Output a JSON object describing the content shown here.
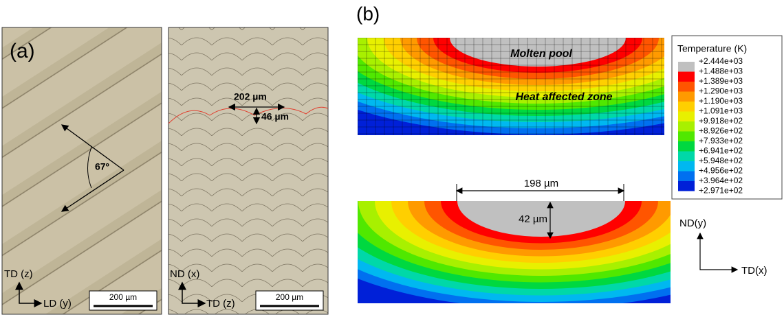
{
  "panel_a": {
    "label": "(a)",
    "left_image": {
      "angle": "67º",
      "axis_vertical": "TD (z)",
      "axis_horizontal": "LD (y)",
      "scale_bar": "200 µm"
    },
    "right_image": {
      "width_label": "202 µm",
      "depth_label": "46 µm",
      "axis_vertical": "ND (x)",
      "axis_horizontal": "TD (z)",
      "scale_bar": "200 µm"
    }
  },
  "panel_b": {
    "label": "(b)",
    "top_model": {
      "pool_label": "Molten pool",
      "haz_label": "Heat affected zone"
    },
    "legend": {
      "title": "Temperature (K)",
      "levels": [
        "+2.444e+03",
        "+1.488e+03",
        "+1.389e+03",
        "+1.290e+03",
        "+1.190e+03",
        "+1.091e+03",
        "+9.918e+02",
        "+8.926e+02",
        "+7.933e+02",
        "+6.941e+02",
        "+5.948e+02",
        "+4.956e+02",
        "+3.964e+02",
        "+2.971e+02"
      ],
      "colors": [
        "#c0c0c0",
        "#ff0000",
        "#ff5500",
        "#ff9a00",
        "#ffcf00",
        "#e8f000",
        "#a8f000",
        "#50e800",
        "#00d840",
        "#00d8a8",
        "#00b8f0",
        "#0070f0",
        "#0020d8"
      ]
    },
    "bottom_model": {
      "width_label": "198 µm",
      "depth_label": "42 µm",
      "axis_vertical": "ND(y)",
      "axis_horizontal": "TD(x)"
    }
  }
}
